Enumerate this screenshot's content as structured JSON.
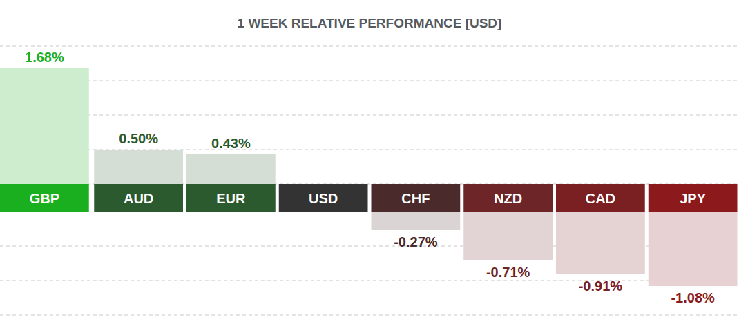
{
  "chart_data": {
    "type": "bar",
    "title": "1 WEEK RELATIVE PERFORMANCE [USD]",
    "categories": [
      "GBP",
      "AUD",
      "EUR",
      "USD",
      "CHF",
      "NZD",
      "CAD",
      "JPY"
    ],
    "values": [
      1.68,
      0.5,
      0.43,
      null,
      -0.27,
      -0.71,
      -0.91,
      -1.08
    ],
    "value_labels": [
      "1.68%",
      "0.50%",
      "0.43%",
      null,
      "-0.27%",
      "-0.71%",
      "-0.91%",
      "-1.08%"
    ],
    "colors": [
      "#1aaf1f",
      "#2b5a2f",
      "#2b5a2f",
      "#333333",
      "#4a2a2b",
      "#6e2527",
      "#7b2022",
      "#8c1a1c"
    ],
    "ylim": [
      -1.5,
      2.0
    ],
    "yticks": [
      -1.5,
      -1.0,
      -0.5,
      0,
      0.5,
      1.0,
      1.5,
      2.0
    ],
    "grid": true,
    "data_labels": true,
    "tick_labels": false
  }
}
